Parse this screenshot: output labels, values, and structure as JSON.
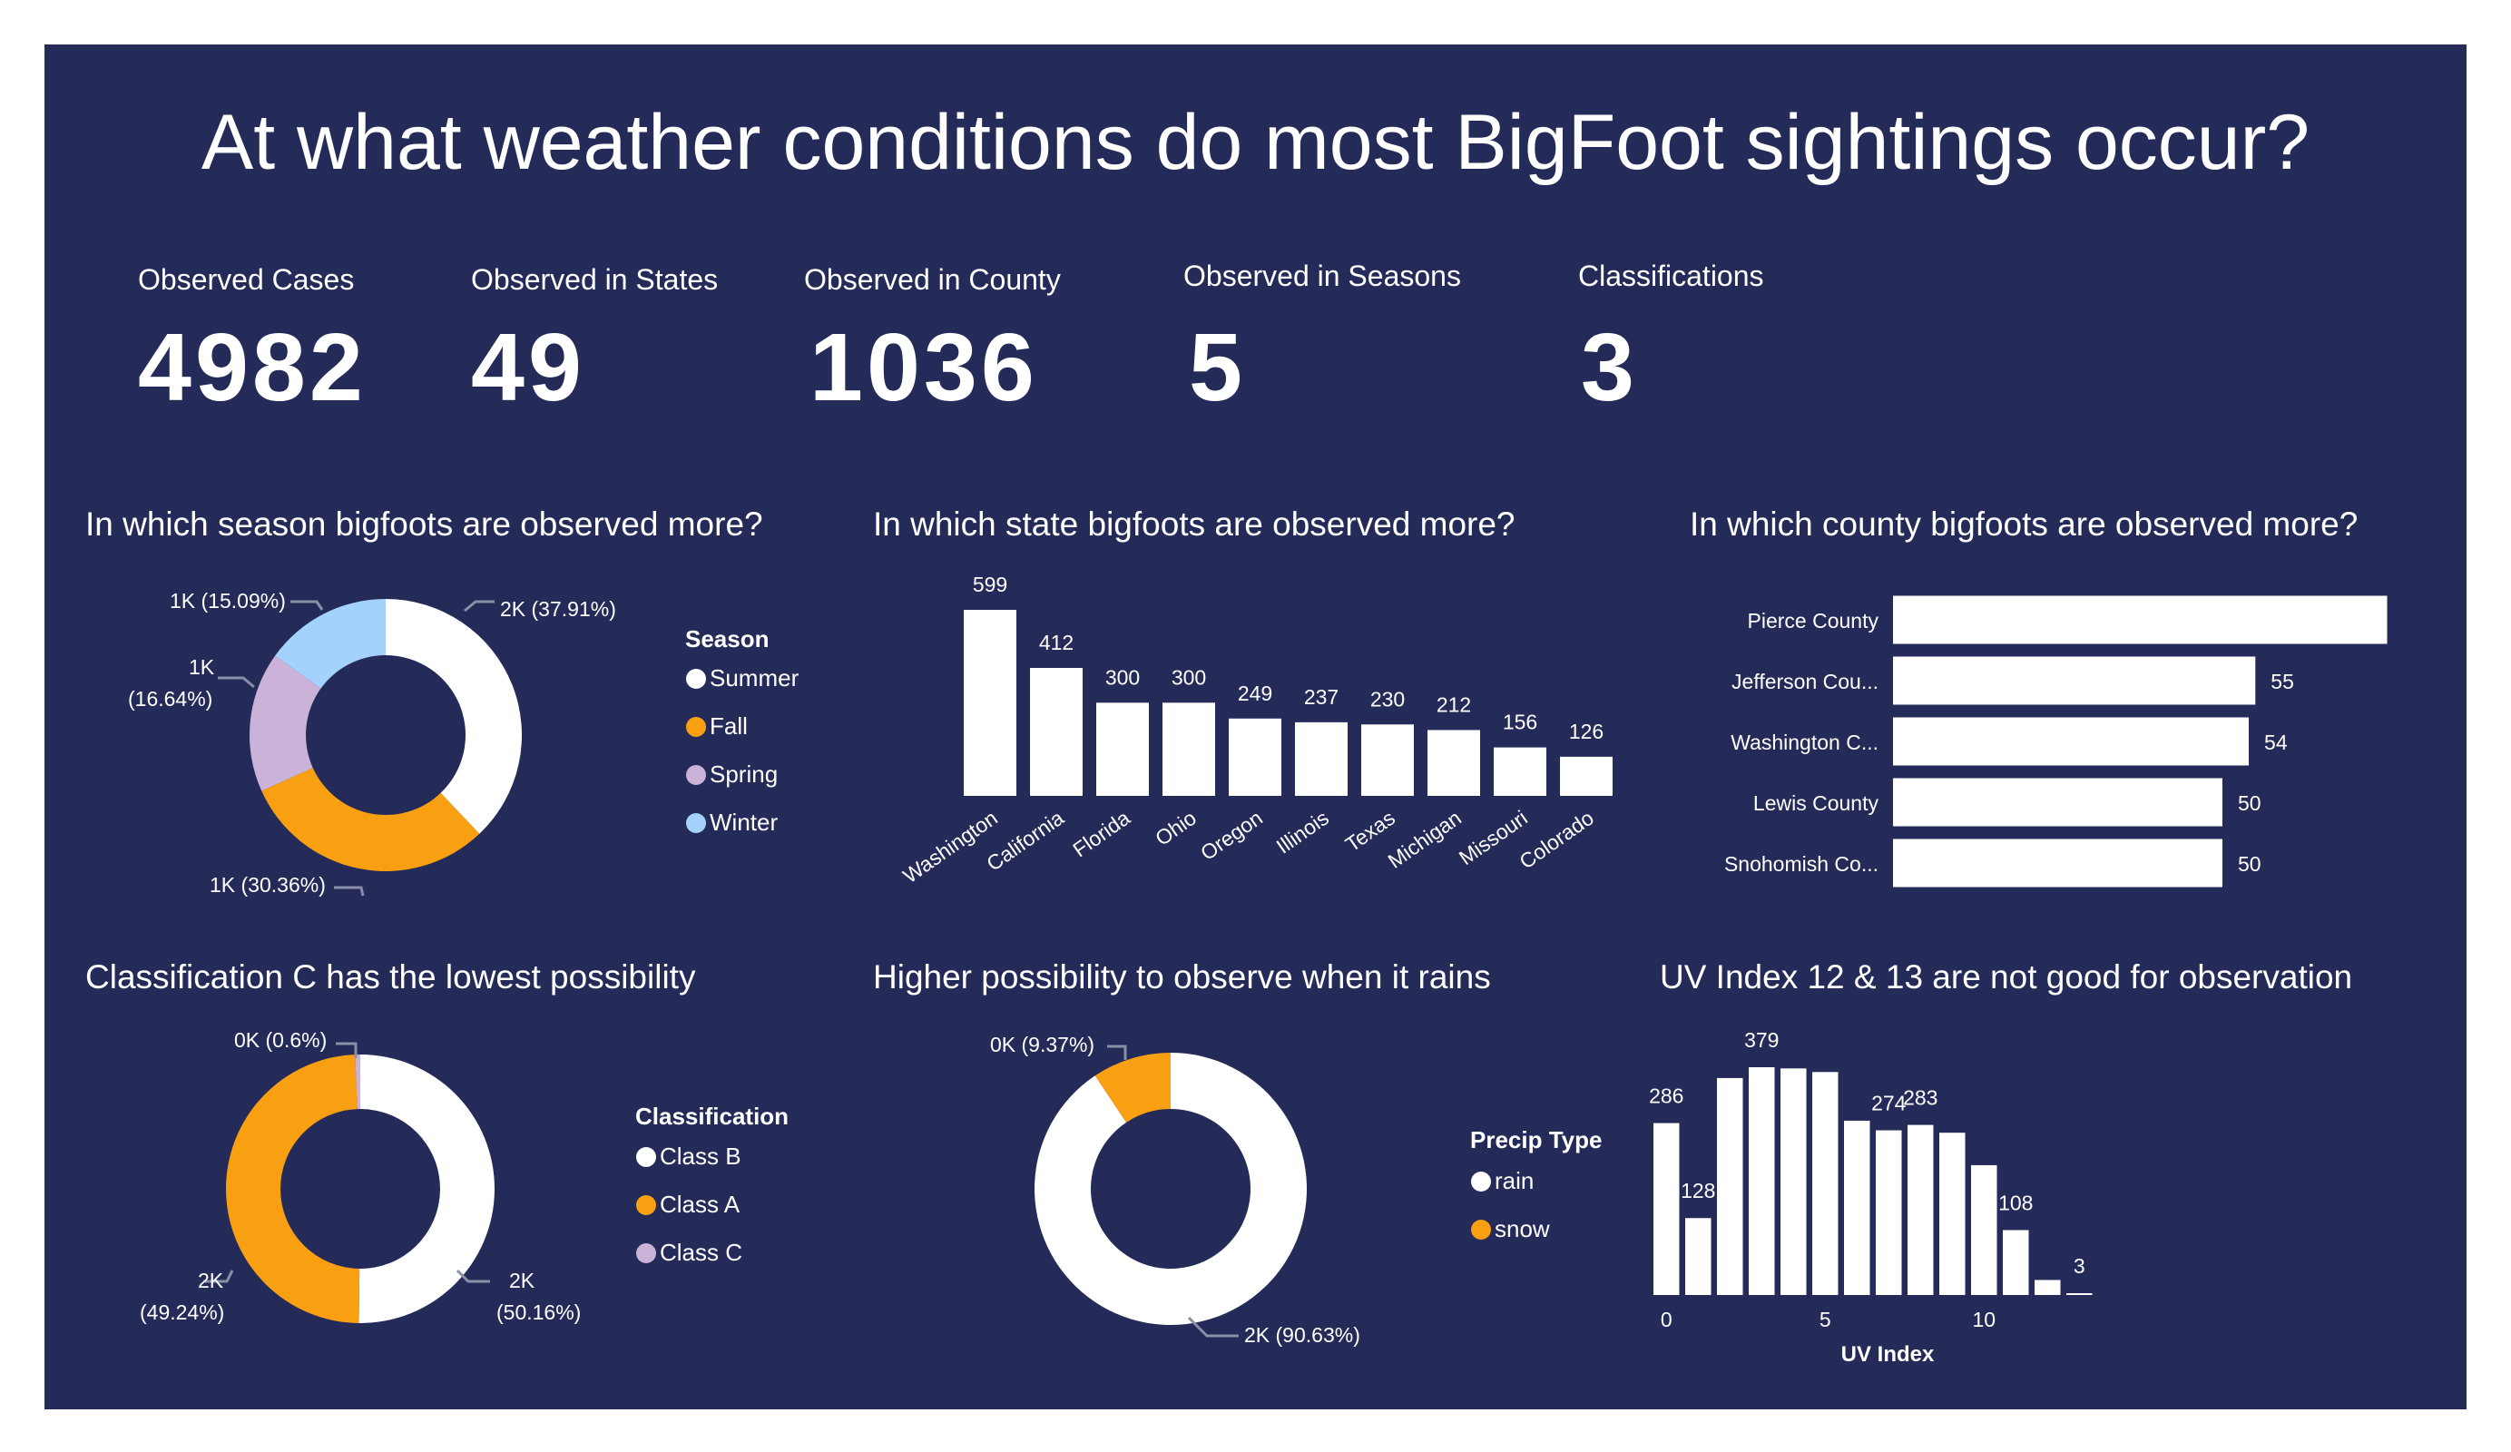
{
  "colors": {
    "background": "#252b59",
    "white": "#ffffff",
    "orange": "#f9a012",
    "lavender": "#cbb2d9",
    "lightblue": "#a3d3fd",
    "leader": "#8a8fa8"
  },
  "title": "At what weather conditions do most BigFoot sightings occur?",
  "kpis": [
    {
      "label": "Observed Cases",
      "value": "4982"
    },
    {
      "label": "Observed in States",
      "value": "49"
    },
    {
      "label": "Observed in County",
      "value": "1036"
    },
    {
      "label": "Observed in Seasons",
      "value": "5"
    },
    {
      "label": "Classifications",
      "value": "3"
    }
  ],
  "sections": {
    "season": "In which season bigfoots are observed more?",
    "state": "In which state bigfoots are observed more?",
    "county": "In which county bigfoots are observed more?",
    "classification": "Classification C has the lowest possibility",
    "precip": "Higher possibility to observe when it rains",
    "uv": "UV Index 12 & 13 are not good for observation"
  },
  "chart_data": [
    {
      "id": "season",
      "type": "pie",
      "donut": true,
      "legend_title": "Season",
      "legend_position": "right",
      "slices": [
        {
          "name": "Summer",
          "percent": 37.91,
          "label": "2K (37.91%)",
          "color": "#ffffff"
        },
        {
          "name": "Fall",
          "percent": 30.36,
          "label": "1K (30.36%)",
          "color": "#f9a012"
        },
        {
          "name": "Spring",
          "percent": 16.64,
          "label_line1": "1K",
          "label_line2": "(16.64%)",
          "color": "#cbb2d9"
        },
        {
          "name": "Winter",
          "percent": 15.09,
          "label": "1K (15.09%)",
          "color": "#a3d3fd"
        }
      ]
    },
    {
      "id": "state",
      "type": "bar",
      "categories": [
        "Washington",
        "California",
        "Florida",
        "Ohio",
        "Oregon",
        "Illinois",
        "Texas",
        "Michigan",
        "Missouri",
        "Colorado"
      ],
      "values": [
        599,
        412,
        300,
        300,
        249,
        237,
        230,
        212,
        156,
        126
      ],
      "ylim": [
        0,
        599
      ]
    },
    {
      "id": "county",
      "type": "bar",
      "orientation": "horizontal",
      "categories": [
        "Pierce County",
        "Jefferson Cou...",
        "Washington C...",
        "Lewis County",
        "Snohomish Co..."
      ],
      "values": [
        75,
        55,
        54,
        50,
        50
      ],
      "value_labels": [
        "",
        "55",
        "54",
        "50",
        "50"
      ]
    },
    {
      "id": "classification",
      "type": "pie",
      "donut": true,
      "legend_title": "Classification",
      "legend_position": "right",
      "slices": [
        {
          "name": "Class B",
          "percent": 50.16,
          "label_line1": "2K",
          "label_line2": "(50.16%)",
          "color": "#ffffff"
        },
        {
          "name": "Class A",
          "percent": 49.24,
          "label_line1": "2K",
          "label_line2": "(49.24%)",
          "color": "#f9a012"
        },
        {
          "name": "Class C",
          "percent": 0.6,
          "label": "0K (0.6%)",
          "color": "#cbb2d9"
        }
      ]
    },
    {
      "id": "precip",
      "type": "pie",
      "donut": true,
      "legend_title": "Precip Type",
      "legend_position": "right",
      "slices": [
        {
          "name": "rain",
          "percent": 90.63,
          "label": "2K (90.63%)",
          "color": "#ffffff"
        },
        {
          "name": "snow",
          "percent": 9.37,
          "label": "0K (9.37%)",
          "color": "#f9a012"
        }
      ]
    },
    {
      "id": "uv",
      "type": "bar",
      "xlabel": "UV Index",
      "x": [
        0,
        1,
        2,
        3,
        4,
        5,
        6,
        7,
        8,
        9,
        10,
        11,
        12,
        13
      ],
      "values": [
        286,
        128,
        361,
        379,
        377,
        371,
        290,
        274,
        283,
        270,
        216,
        108,
        25,
        3
      ],
      "value_labels": [
        "286",
        "128",
        "",
        "379",
        "",
        "",
        "",
        "274",
        "283",
        "",
        "",
        "108",
        "",
        "3"
      ],
      "xticks": [
        "0",
        "5",
        "10"
      ],
      "ylim": [
        0,
        379
      ]
    }
  ]
}
